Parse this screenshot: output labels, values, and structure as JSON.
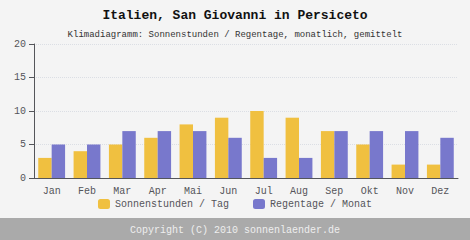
{
  "chart_data": {
    "type": "bar",
    "title": "Italien, San Giovanni in Persiceto",
    "subtitle": "Klimadiagramm: Sonnenstunden / Regentage, monatlich, gemittelt",
    "annotations": [
      "Copyright (C) 2010 sonnenlaender.de"
    ],
    "categories": [
      "Jan",
      "Feb",
      "Mar",
      "Apr",
      "Mai",
      "Jun",
      "Jul",
      "Aug",
      "Sep",
      "Okt",
      "Nov",
      "Dez"
    ],
    "series": [
      {
        "name": "Sonnenstunden / Tag",
        "color": "#F0C040",
        "values": [
          3,
          4,
          5,
          6,
          8,
          9,
          10,
          9,
          7,
          5,
          2,
          2
        ]
      },
      {
        "name": "Regentage / Monat",
        "color": "#7878CC",
        "values": [
          5,
          5,
          7,
          7,
          7,
          6,
          3,
          3,
          7,
          7,
          7,
          6
        ]
      }
    ],
    "ylim": [
      0,
      20
    ],
    "yticks": [
      0,
      5,
      10,
      15,
      20
    ],
    "grid": true,
    "legend": "bottom"
  }
}
